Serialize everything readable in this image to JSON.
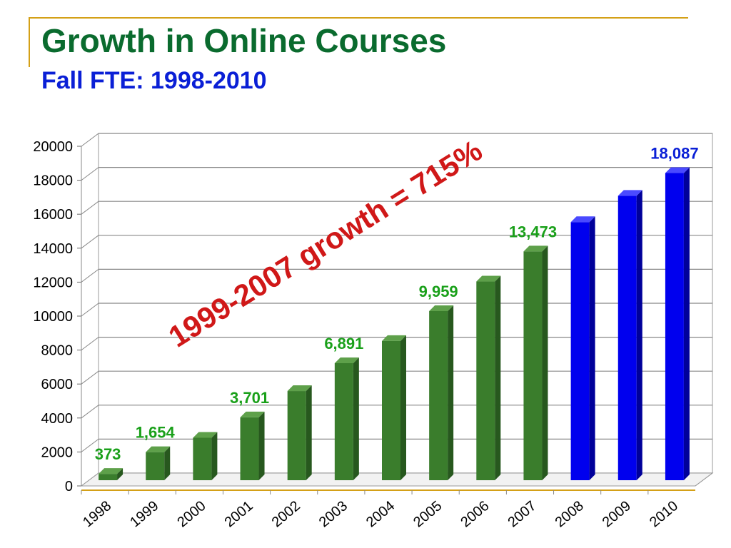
{
  "slide": {
    "title": "Growth in Online Courses",
    "subtitle": "Fall FTE: 1998-2010"
  },
  "colors": {
    "title": "#0a6b2e",
    "subtitle": "#0a1fd6",
    "green_bar": "#3a7d2c",
    "blue_bar": "#0000ee",
    "green_label": "#1aa01a",
    "blue_label": "#0a1fd6",
    "annotation": "#d01818",
    "frame": "#d4a017"
  },
  "chart_data": {
    "type": "bar",
    "categories": [
      "1998",
      "1999",
      "2000",
      "2001",
      "2002",
      "2003",
      "2004",
      "2005",
      "2006",
      "2007",
      "2008",
      "2009",
      "2010"
    ],
    "values": [
      373,
      1654,
      2500,
      3701,
      5250,
      6891,
      8200,
      9959,
      11700,
      13473,
      15200,
      16750,
      18087
    ],
    "bar_colors": [
      "green",
      "green",
      "green",
      "green",
      "green",
      "green",
      "green",
      "green",
      "green",
      "green",
      "blue",
      "blue",
      "blue"
    ],
    "data_labels": [
      {
        "index": 0,
        "text": "373",
        "color": "green"
      },
      {
        "index": 1,
        "text": "1,654",
        "color": "green"
      },
      {
        "index": 3,
        "text": "3,701",
        "color": "green"
      },
      {
        "index": 5,
        "text": "6,891",
        "color": "green"
      },
      {
        "index": 7,
        "text": "9,959",
        "color": "green"
      },
      {
        "index": 9,
        "text": "13,473",
        "color": "green"
      },
      {
        "index": 12,
        "text": "18,087",
        "color": "blue"
      }
    ],
    "yticks": [
      "0",
      "2000",
      "4000",
      "6000",
      "8000",
      "10000",
      "12000",
      "14000",
      "16000",
      "18000",
      "20000"
    ],
    "ylim": [
      0,
      20000
    ],
    "grid": true,
    "annotation": "1999-2007 growth =  715%"
  }
}
